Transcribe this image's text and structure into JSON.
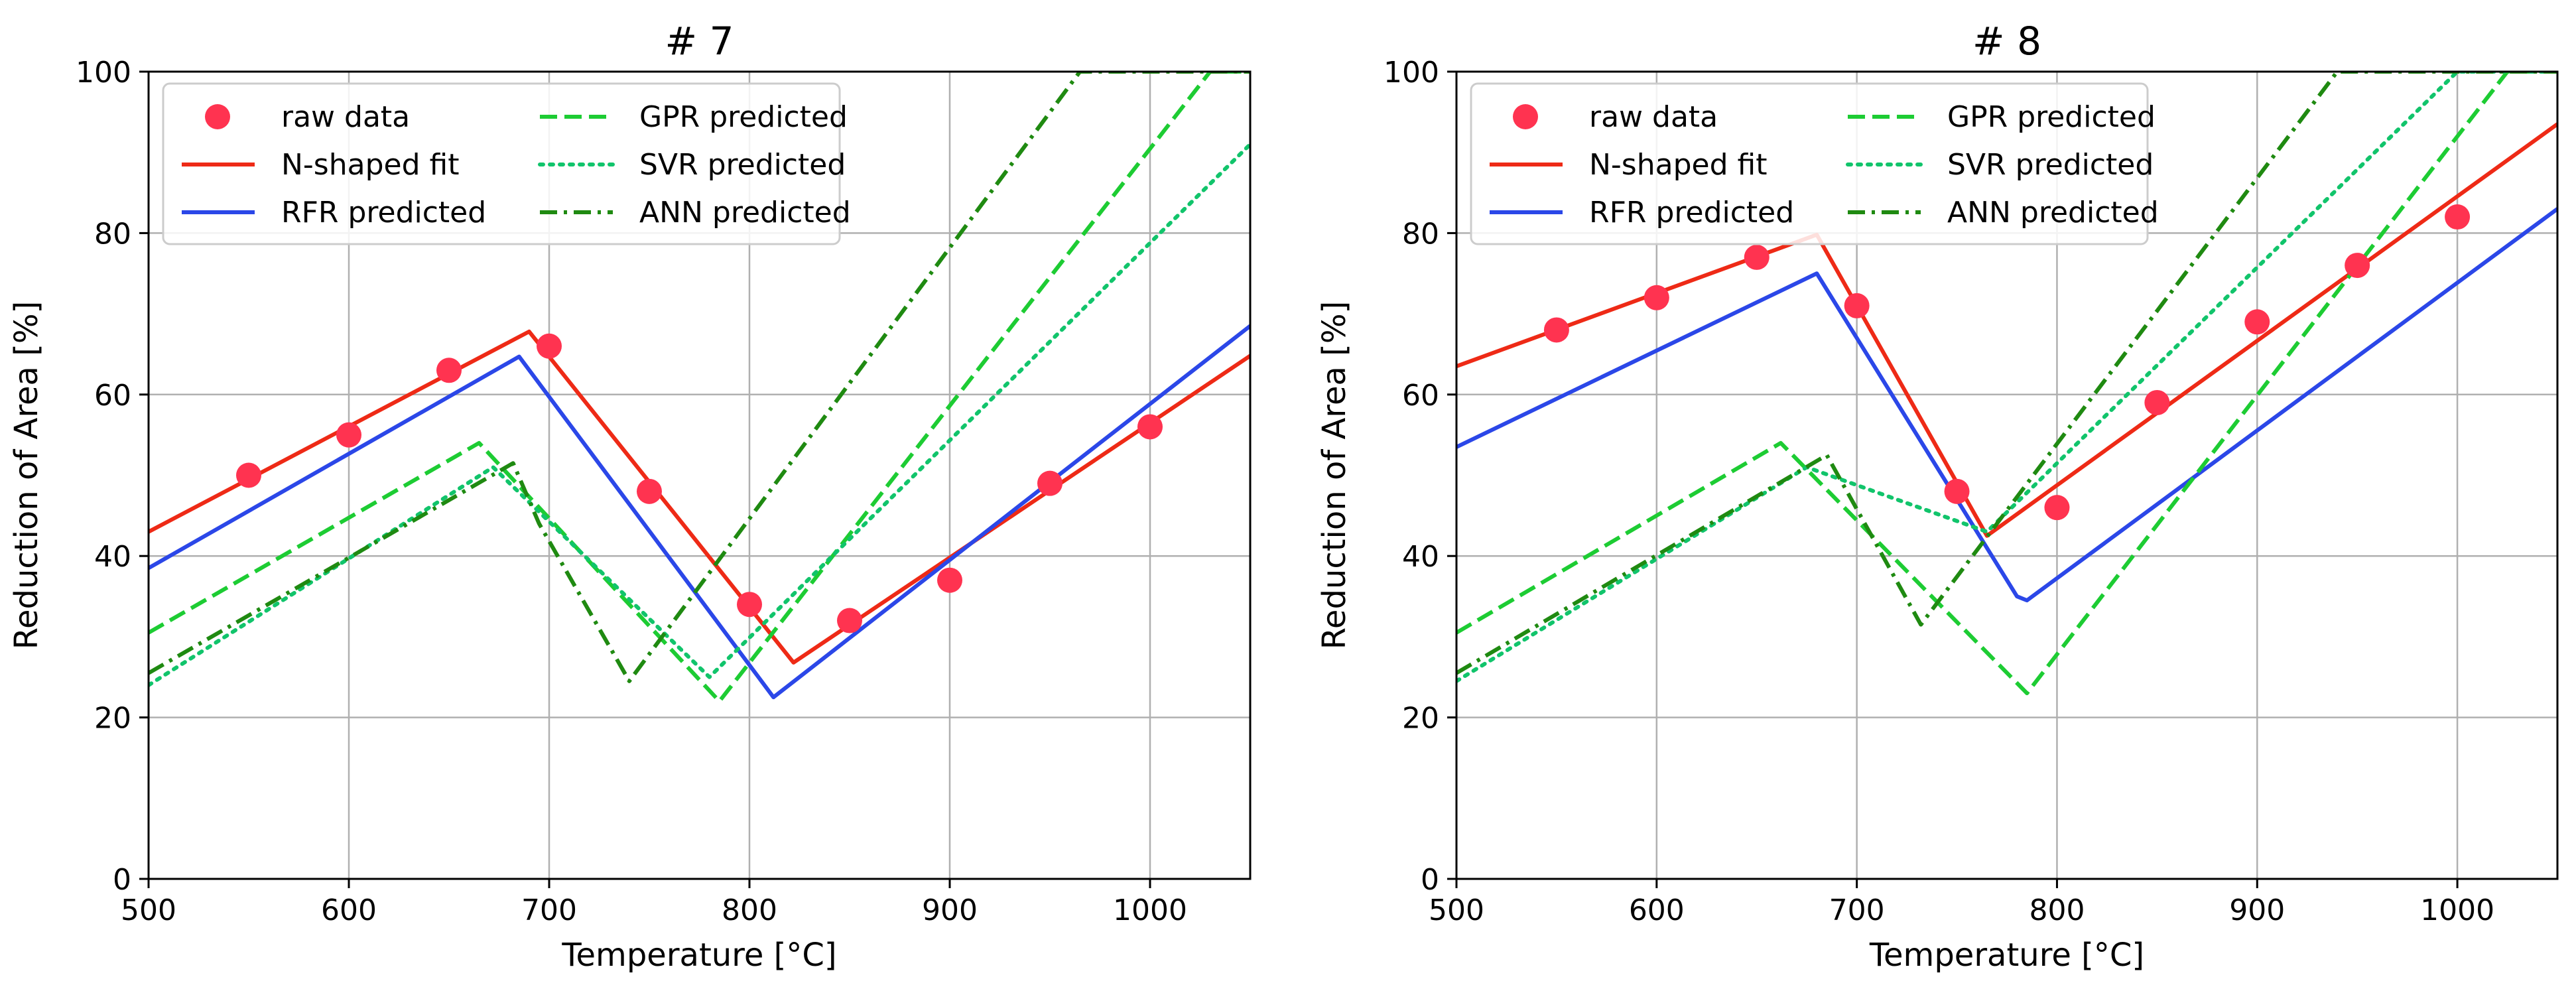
{
  "chart_data": [
    {
      "type": "line",
      "title": "# 7",
      "xlabel": "Temperature [°C]",
      "ylabel": "Reduction of Area [%]",
      "xlim": [
        500,
        1050
      ],
      "ylim": [
        0,
        100
      ],
      "xticks": [
        500,
        600,
        700,
        800,
        900,
        1000
      ],
      "yticks": [
        0,
        20,
        40,
        60,
        80,
        100
      ],
      "grid": true,
      "legend": "top-left, 2 columns",
      "series": [
        {
          "name": "raw data",
          "kind": "scatter",
          "color": "#ff3350",
          "x": [
            550,
            600,
            650,
            700,
            750,
            800,
            850,
            900,
            950,
            1000
          ],
          "y": [
            50,
            55,
            63,
            66,
            48,
            34,
            32,
            37,
            49,
            56
          ]
        },
        {
          "name": "N-shaped fit",
          "kind": "solid",
          "color": "#ee2a16",
          "x": [
            500,
            690,
            822,
            1050
          ],
          "y": [
            43,
            67.8,
            26.8,
            64.8
          ]
        },
        {
          "name": "RFR predicted",
          "kind": "solid",
          "color": "#2b47e8",
          "x": [
            500,
            685,
            812,
            1050
          ],
          "y": [
            38.5,
            64.7,
            22.5,
            68.5
          ]
        },
        {
          "name": "GPR predicted",
          "kind": "dashed",
          "color": "#1dcc33",
          "x": [
            500,
            665,
            785,
            1030,
            1050
          ],
          "y": [
            30.5,
            54,
            22,
            100,
            100
          ]
        },
        {
          "name": "SVR predicted",
          "kind": "dotted",
          "color": "#11c46b",
          "x": [
            500,
            672,
            780,
            1050
          ],
          "y": [
            24,
            51,
            25,
            91
          ]
        },
        {
          "name": "ANN predicted",
          "kind": "dashdot",
          "color": "#1f8a11",
          "x": [
            500,
            682,
            695,
            740,
            965,
            1050
          ],
          "y": [
            25.5,
            51.5,
            44,
            24.5,
            100,
            100
          ]
        }
      ]
    },
    {
      "type": "line",
      "title": "# 8",
      "xlabel": "Temperature [°C]",
      "ylabel": "Reduction of Area [%]",
      "xlim": [
        500,
        1050
      ],
      "ylim": [
        0,
        100
      ],
      "xticks": [
        500,
        600,
        700,
        800,
        900,
        1000
      ],
      "yticks": [
        0,
        20,
        40,
        60,
        80,
        100
      ],
      "grid": true,
      "legend": "top-left, 2 columns",
      "series": [
        {
          "name": "raw data",
          "kind": "scatter",
          "color": "#ff3350",
          "x": [
            550,
            600,
            650,
            700,
            750,
            800,
            850,
            900,
            950,
            1000
          ],
          "y": [
            68,
            72,
            77,
            71,
            48,
            46,
            59,
            69,
            76,
            82
          ]
        },
        {
          "name": "N-shaped fit",
          "kind": "solid",
          "color": "#ee2a16",
          "x": [
            500,
            680,
            765,
            1050
          ],
          "y": [
            63.5,
            79.8,
            42.5,
            93.5
          ]
        },
        {
          "name": "RFR predicted",
          "kind": "solid",
          "color": "#2b47e8",
          "x": [
            500,
            680,
            780,
            785,
            1050
          ],
          "y": [
            53.5,
            75,
            35,
            34.5,
            83
          ]
        },
        {
          "name": "GPR predicted",
          "kind": "dashed",
          "color": "#1dcc33",
          "x": [
            500,
            662,
            785,
            1025,
            1050
          ],
          "y": [
            30.5,
            54,
            23,
            100,
            100
          ]
        },
        {
          "name": "SVR predicted",
          "kind": "dotted",
          "color": "#11c46b",
          "x": [
            500,
            675,
            765,
            1000,
            1050
          ],
          "y": [
            24.5,
            51,
            43,
            100,
            100
          ]
        },
        {
          "name": "ANN predicted",
          "kind": "dashdot",
          "color": "#1f8a11",
          "x": [
            500,
            685,
            732,
            940,
            1050
          ],
          "y": [
            25.5,
            52.5,
            31.5,
            100,
            100
          ]
        }
      ]
    }
  ]
}
